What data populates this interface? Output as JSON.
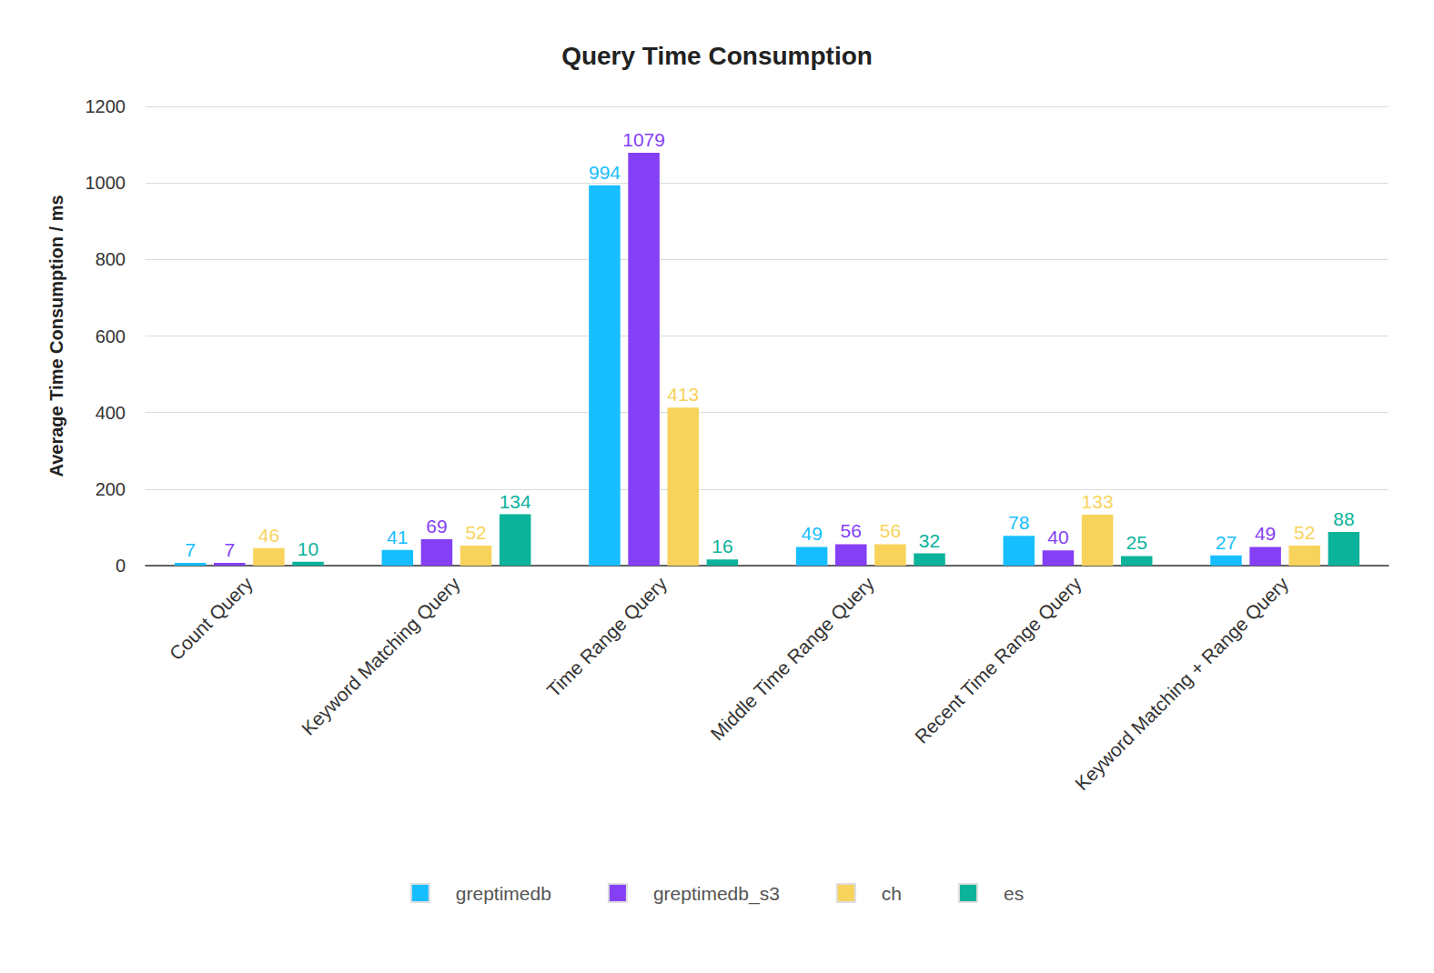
{
  "chart_data": {
    "type": "bar",
    "title": "Query Time Consumption",
    "y_label": "Average Time Consumption / ms",
    "categories": [
      "Count Query",
      "Keyword Matching Query",
      "Time Range Query",
      "Middle Time Range Query",
      "Recent Time Range Query",
      "Keyword Matching + Range Query"
    ],
    "series": [
      {
        "name": "greptimedb",
        "color": "#17beff",
        "values": [
          7,
          41,
          994,
          49,
          78,
          27
        ]
      },
      {
        "name": "greptimedb_s3",
        "color": "#853ff5",
        "values": [
          7,
          69,
          1079,
          56,
          40,
          49
        ]
      },
      {
        "name": "ch",
        "color": "#f8d35c",
        "values": [
          46,
          52,
          413,
          56,
          133,
          52
        ]
      },
      {
        "name": "es",
        "color": "#0bb39b",
        "values": [
          10,
          134,
          16,
          32,
          25,
          88
        ]
      }
    ],
    "ylim": [
      0,
      1200
    ],
    "yticks": [
      0,
      200,
      400,
      600,
      800,
      1000,
      1200
    ],
    "grid": true,
    "legend": "bottom",
    "data_labels": true
  }
}
